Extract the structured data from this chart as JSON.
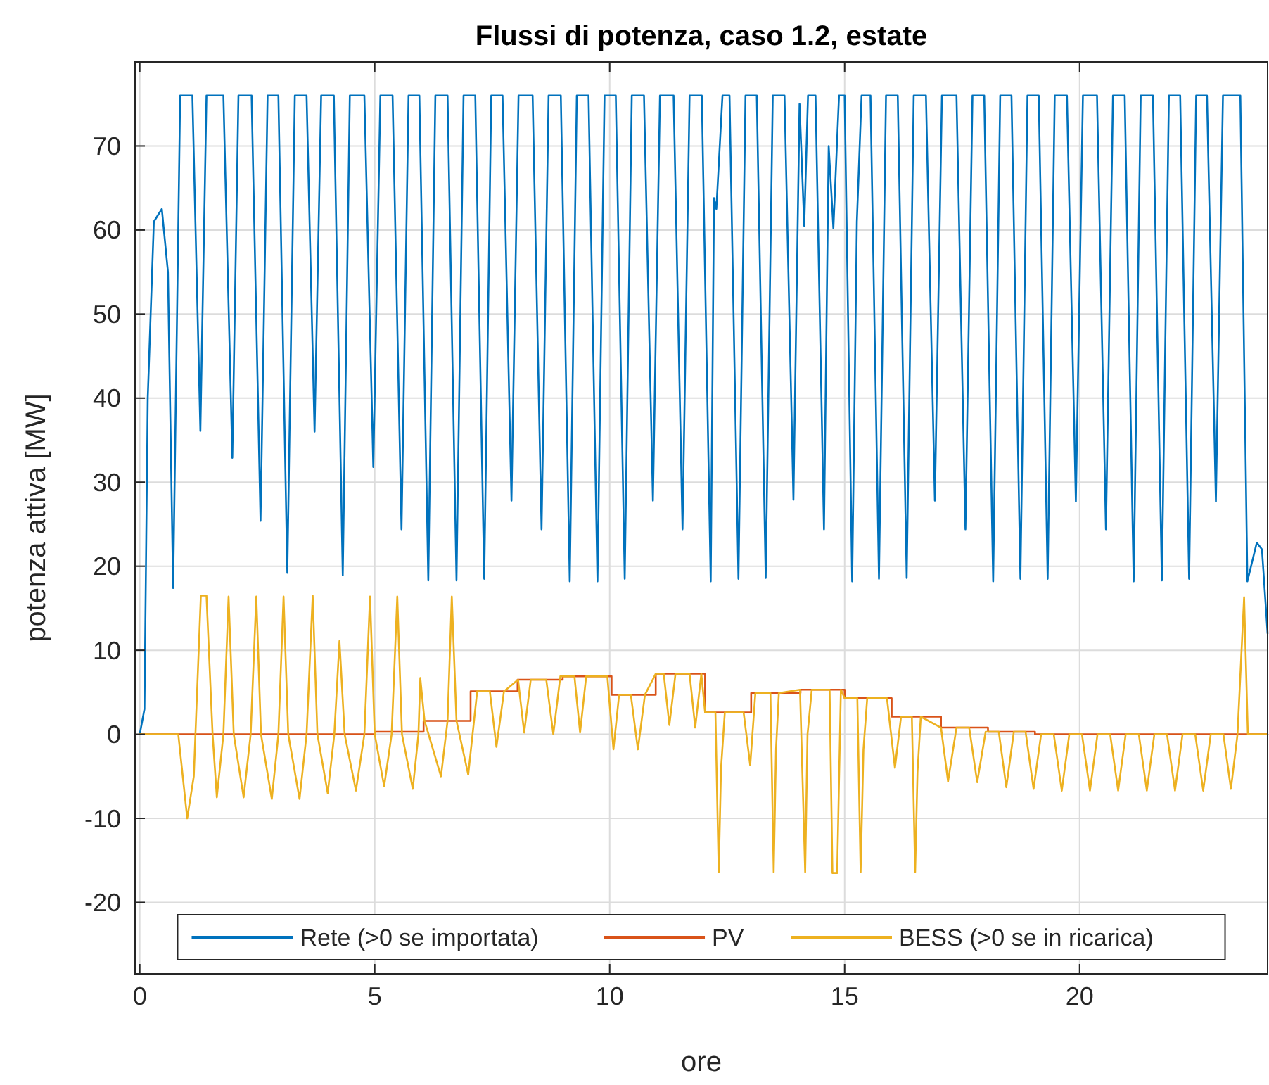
{
  "chart_data": {
    "type": "line",
    "title": "Flussi di potenza, caso 1.2, estate",
    "xlabel": "ore",
    "ylabel": "potenza attiva [MW]",
    "xlim": [
      -0.1,
      24
    ],
    "xticks": [
      0,
      5,
      10,
      15,
      20
    ],
    "ylim": [
      -28.5,
      80
    ],
    "yticks": [
      -20,
      -10,
      0,
      10,
      20,
      30,
      40,
      50,
      60,
      70
    ],
    "grid": true,
    "legend": "bottom",
    "series": [
      {
        "name": "Rete (>0 se importata)",
        "color": "#0072bd",
        "x": [
          0,
          0.1,
          0.17,
          0.3,
          0.47,
          0.6,
          0.71,
          0.86,
          1.12,
          1.29,
          1.42,
          1.78,
          1.97,
          2.1,
          2.38,
          2.57,
          2.72,
          2.95,
          3.14,
          3.3,
          3.55,
          3.72,
          3.86,
          4.13,
          4.32,
          4.47,
          4.78,
          4.97,
          5.12,
          5.38,
          5.57,
          5.72,
          5.95,
          6.14,
          6.29,
          6.55,
          6.74,
          6.89,
          7.14,
          7.33,
          7.48,
          7.72,
          7.91,
          8.06,
          8.36,
          8.55,
          8.7,
          8.96,
          9.15,
          9.3,
          9.55,
          9.74,
          9.89,
          10.13,
          10.32,
          10.47,
          10.73,
          10.92,
          11.07,
          11.36,
          11.55,
          11.7,
          11.96,
          12.15,
          12.22,
          12.27,
          12.4,
          12.55,
          12.74,
          12.89,
          13.13,
          13.32,
          13.47,
          13.72,
          13.91,
          14.04,
          14.14,
          14.22,
          14.3,
          14.38,
          14.56,
          14.66,
          14.76,
          14.88,
          15.0,
          15.16,
          15.26,
          15.36,
          15.55,
          15.73,
          15.88,
          16.13,
          16.32,
          16.47,
          16.73,
          16.92,
          17.07,
          17.38,
          17.57,
          17.72,
          17.97,
          18.16,
          18.31,
          18.55,
          18.74,
          18.89,
          19.13,
          19.32,
          19.47,
          19.73,
          19.92,
          20.07,
          20.37,
          20.56,
          20.71,
          20.96,
          21.15,
          21.3,
          21.56,
          21.75,
          21.9,
          22.14,
          22.33,
          22.48,
          22.71,
          22.9,
          23.05,
          23.42,
          23.57,
          23.77,
          23.88,
          24
        ],
        "values": [
          0,
          3,
          40,
          61,
          62.5,
          55,
          17.4,
          76,
          76,
          36.1,
          76,
          76,
          32.9,
          76,
          76,
          25.4,
          76,
          76,
          19.2,
          76,
          76,
          36,
          76,
          76,
          18.9,
          76,
          76,
          31.8,
          76,
          76,
          24.4,
          76,
          76,
          18.3,
          76,
          76,
          18.3,
          76,
          76,
          18.5,
          76,
          76,
          27.8,
          76,
          76,
          24.4,
          76,
          76,
          18.2,
          76,
          76,
          18.2,
          76,
          76,
          18.5,
          76,
          76,
          27.8,
          76,
          76,
          24.4,
          76,
          76,
          18.2,
          63.8,
          62.5,
          76,
          76,
          18.5,
          76,
          76,
          18.6,
          76,
          76,
          27.9,
          75,
          60.5,
          76,
          76,
          76,
          24.4,
          70,
          60.2,
          76,
          76,
          18.2,
          61,
          76,
          76,
          18.5,
          76,
          76,
          18.6,
          76,
          76,
          27.8,
          76,
          76,
          24.4,
          76,
          76,
          18.2,
          76,
          76,
          18.5,
          76,
          76,
          18.5,
          76,
          76,
          27.7,
          76,
          76,
          24.4,
          76,
          76,
          18.2,
          76,
          76,
          18.3,
          76,
          76,
          18.5,
          76,
          76,
          27.7,
          76,
          76,
          18.2,
          22.8,
          22,
          12
        ]
      },
      {
        "name": "PV",
        "color": "#d95319",
        "type": "step",
        "x": [
          0,
          5,
          6.04,
          7.04,
          8.04,
          9.0,
          10.04,
          10.98,
          12.03,
          13.01,
          14.06,
          15.0,
          16.0,
          17.05,
          18.05,
          19.05,
          24
        ],
        "values": [
          0,
          0.3,
          1.6,
          5.1,
          6.5,
          6.9,
          4.7,
          7.2,
          2.6,
          4.9,
          5.3,
          4.3,
          2.1,
          0.8,
          0.3,
          0,
          0
        ]
      },
      {
        "name": "BESS (>0 se in ricarica)",
        "color": "#edb120",
        "x": [
          0,
          0.82,
          1.01,
          1.15,
          1.3,
          1.42,
          1.55,
          1.64,
          1.78,
          1.89,
          2.0,
          2.21,
          2.36,
          2.48,
          2.58,
          2.81,
          2.95,
          3.06,
          3.16,
          3.4,
          3.55,
          3.68,
          3.78,
          4.0,
          4.14,
          4.25,
          4.36,
          4.6,
          4.78,
          4.9,
          5.0,
          5.2,
          5.36,
          5.48,
          5.58,
          5.81,
          5.93,
          5.97,
          6.06,
          6.41,
          6.55,
          6.64,
          6.74,
          6.99,
          7.18,
          7.45,
          7.59,
          7.75,
          8.05,
          8.18,
          8.32,
          8.65,
          8.8,
          8.95,
          9.25,
          9.37,
          9.5,
          9.95,
          10.08,
          10.2,
          10.45,
          10.6,
          10.75,
          10.98,
          11.15,
          11.27,
          11.4,
          11.7,
          11.82,
          11.95,
          12.03,
          12.25,
          12.32,
          12.37,
          12.45,
          12.85,
          12.99,
          13.1,
          13.42,
          13.49,
          13.54,
          13.6,
          14.05,
          14.16,
          14.21,
          14.3,
          14.68,
          14.74,
          14.84,
          14.92,
          15.0,
          15.27,
          15.34,
          15.4,
          15.48,
          15.9,
          16.07,
          16.2,
          16.43,
          16.5,
          16.55,
          16.62,
          17.05,
          17.2,
          17.38,
          17.65,
          17.82,
          18.0,
          18.28,
          18.44,
          18.6,
          18.85,
          19.02,
          19.18,
          19.45,
          19.62,
          19.78,
          20.05,
          20.22,
          20.38,
          20.65,
          20.82,
          20.98,
          21.26,
          21.43,
          21.59,
          21.86,
          22.03,
          22.19,
          22.46,
          22.63,
          22.79,
          23.06,
          23.22,
          23.36,
          23.5,
          23.58,
          24
        ],
        "values": [
          0,
          0,
          -10,
          -5,
          16.5,
          16.5,
          0,
          -7.5,
          0,
          16.4,
          0,
          -7.5,
          0,
          16.4,
          0,
          -7.7,
          0,
          16.4,
          0,
          -7.7,
          0,
          16.5,
          0,
          -7,
          0,
          11.1,
          0,
          -6.7,
          0,
          16.4,
          0,
          -6.2,
          0,
          16.4,
          0,
          -6.5,
          0,
          6.7,
          1.6,
          -5,
          1.6,
          16.4,
          1.6,
          -4.8,
          5.1,
          5.1,
          -1.5,
          5.1,
          6.5,
          0.2,
          6.5,
          6.5,
          0,
          6.9,
          6.9,
          0.2,
          6.9,
          6.9,
          -1.8,
          4.7,
          4.7,
          -1.8,
          4.7,
          7.2,
          7.2,
          1.1,
          7.2,
          7.2,
          0.8,
          7.2,
          2.6,
          2.6,
          -16.4,
          -4,
          2.6,
          2.6,
          -3.7,
          4.9,
          4.9,
          -16.4,
          -1.7,
          4.9,
          5.3,
          -16.4,
          0,
          5.3,
          5.3,
          -16.5,
          -16.5,
          5.3,
          4.3,
          4.3,
          -16.4,
          -1.8,
          4.3,
          4.3,
          -4,
          2.1,
          2.1,
          -16.4,
          -4.5,
          2.1,
          0.8,
          -5.6,
          0.8,
          0.8,
          -5.7,
          0.3,
          0.3,
          -6.3,
          0.3,
          0.3,
          -6.5,
          0,
          0,
          -6.7,
          0,
          0,
          -6.7,
          0,
          0,
          -6.7,
          0,
          0,
          -6.7,
          0,
          0,
          -6.7,
          0,
          0,
          -6.7,
          0,
          0,
          -6.5,
          0,
          16.3,
          0,
          0
        ]
      }
    ]
  }
}
